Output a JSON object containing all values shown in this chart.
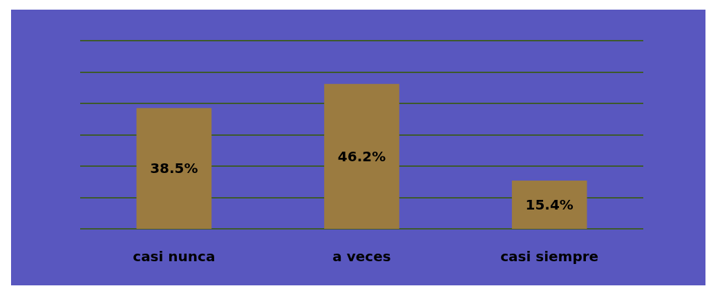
{
  "chart_data": {
    "type": "bar",
    "categories": [
      "casi nunca",
      "a veces",
      "casi siempre"
    ],
    "values": [
      38.5,
      46.2,
      15.4
    ],
    "color": "#9b7b40",
    "value_labels": [
      "38.5%",
      "46.2%",
      "15.4%"
    ],
    "ylim": [
      0,
      60
    ],
    "yticks": [
      {
        "value": 0,
        "label": null
      },
      {
        "value": 10,
        "label": null
      },
      {
        "value": 20,
        "label": null
      },
      {
        "value": 30,
        "label": null
      },
      {
        "value": 40,
        "label": null
      },
      {
        "value": 50,
        "label": null
      },
      {
        "value": 60,
        "label": null
      }
    ],
    "grid": "y",
    "tick_labels": "x"
  }
}
